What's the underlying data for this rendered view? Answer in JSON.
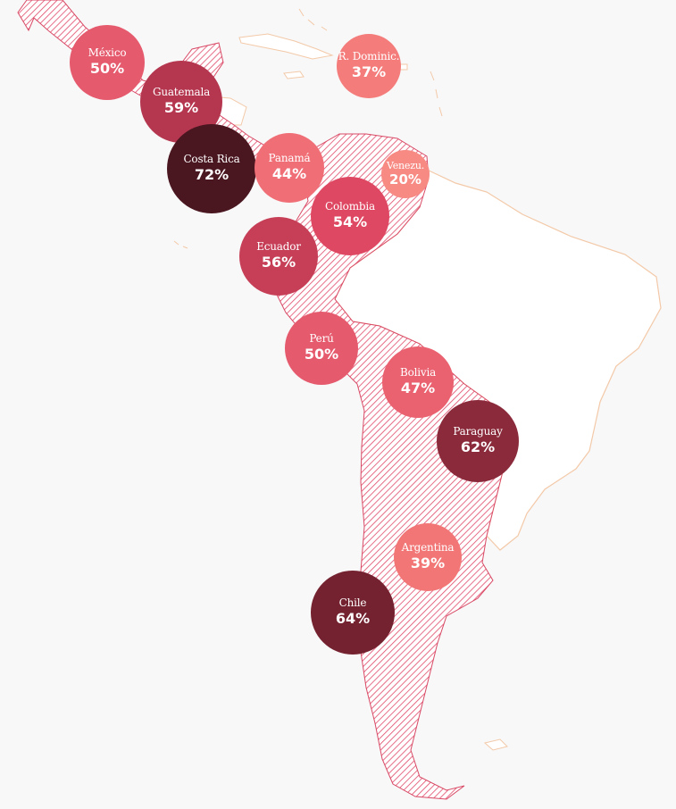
{
  "map": {
    "colors": {
      "background": "#f8f8f8",
      "hatch": "#e04a6a",
      "outline_countries": "#d94a66",
      "other_land_fill": "#ffffff",
      "other_land_outline": "#f3c9a8"
    },
    "markers": [
      {
        "id": "mexico",
        "country": "México",
        "value": 50,
        "label": "50%",
        "color": "#e65a6e"
      },
      {
        "id": "guatemala",
        "country": "Guatemala",
        "value": 59,
        "label": "59%",
        "color": "#b5364f"
      },
      {
        "id": "costa-rica",
        "country": "Costa Rica",
        "value": 72,
        "label": "72%",
        "color": "#4a1620"
      },
      {
        "id": "panama",
        "country": "Panamá",
        "value": 44,
        "label": "44%",
        "color": "#f06f77"
      },
      {
        "id": "republica-dominicana",
        "country": "R. Dominic.",
        "value": 37,
        "label": "37%",
        "color": "#f47c7a"
      },
      {
        "id": "venezuela",
        "country": "Venezu.",
        "value": 20,
        "label": "20%",
        "color": "#f78a83"
      },
      {
        "id": "colombia",
        "country": "Colombia",
        "value": 54,
        "label": "54%",
        "color": "#df4862"
      },
      {
        "id": "ecuador",
        "country": "Ecuador",
        "value": 56,
        "label": "56%",
        "color": "#c63f57"
      },
      {
        "id": "peru",
        "country": "Perú",
        "value": 50,
        "label": "50%",
        "color": "#e65a6e"
      },
      {
        "id": "bolivia",
        "country": "Bolivia",
        "value": 47,
        "label": "47%",
        "color": "#ea6270"
      },
      {
        "id": "paraguay",
        "country": "Paraguay",
        "value": 62,
        "label": "62%",
        "color": "#8a2a3b"
      },
      {
        "id": "argentina",
        "country": "Argentina",
        "value": 39,
        "label": "39%",
        "color": "#f27676"
      },
      {
        "id": "chile",
        "country": "Chile",
        "value": 64,
        "label": "64%",
        "color": "#74222f"
      }
    ]
  }
}
